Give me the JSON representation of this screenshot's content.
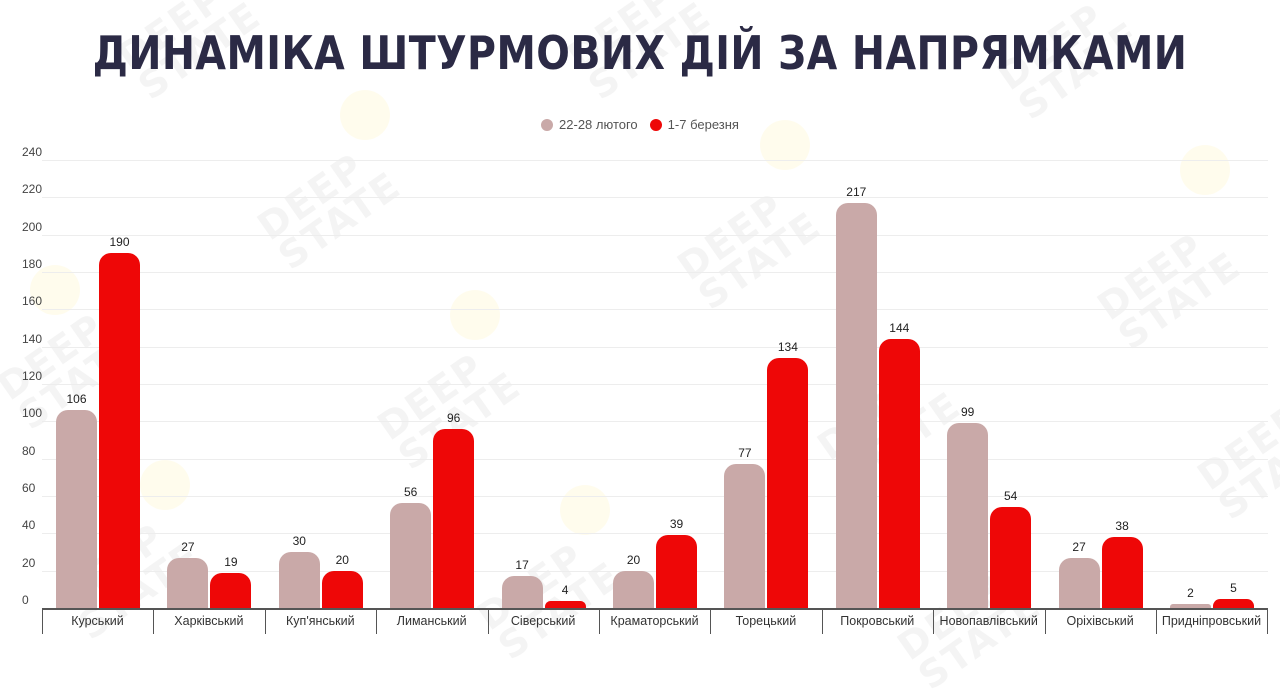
{
  "title": "ДИНАМІКА ШТУРМОВИХ ДІЙ ЗА НАПРЯМКАМИ",
  "legend": [
    {
      "label": "22-28 лютого",
      "color": "#c9a9a8"
    },
    {
      "label": "1-7 березня",
      "color": "#ee0707"
    }
  ],
  "watermark_text": "DEEP STATE",
  "chart_data": {
    "type": "bar",
    "title": "ДИНАМІКА ШТУРМОВИХ ДІЙ ЗА НАПРЯМКАМИ",
    "xlabel": "",
    "ylabel": "",
    "ylim": [
      0,
      240
    ],
    "yticks": [
      0,
      20,
      40,
      60,
      80,
      100,
      120,
      140,
      160,
      180,
      200,
      220,
      240
    ],
    "grid": true,
    "legend_position": "top",
    "categories": [
      "Курський",
      "Харківський",
      "Куп'янський",
      "Лиманський",
      "Сіверський",
      "Краматорський",
      "Торецький",
      "Покровський",
      "Новопавлівський",
      "Оріхівський",
      "Придніпровський"
    ],
    "series": [
      {
        "name": "22-28 лютого",
        "color": "#c9a9a8",
        "values": [
          106,
          27,
          30,
          56,
          17,
          20,
          77,
          217,
          99,
          27,
          2
        ]
      },
      {
        "name": "1-7 березня",
        "color": "#ee0707",
        "values": [
          190,
          19,
          20,
          96,
          4,
          39,
          134,
          144,
          54,
          38,
          5
        ]
      }
    ]
  }
}
